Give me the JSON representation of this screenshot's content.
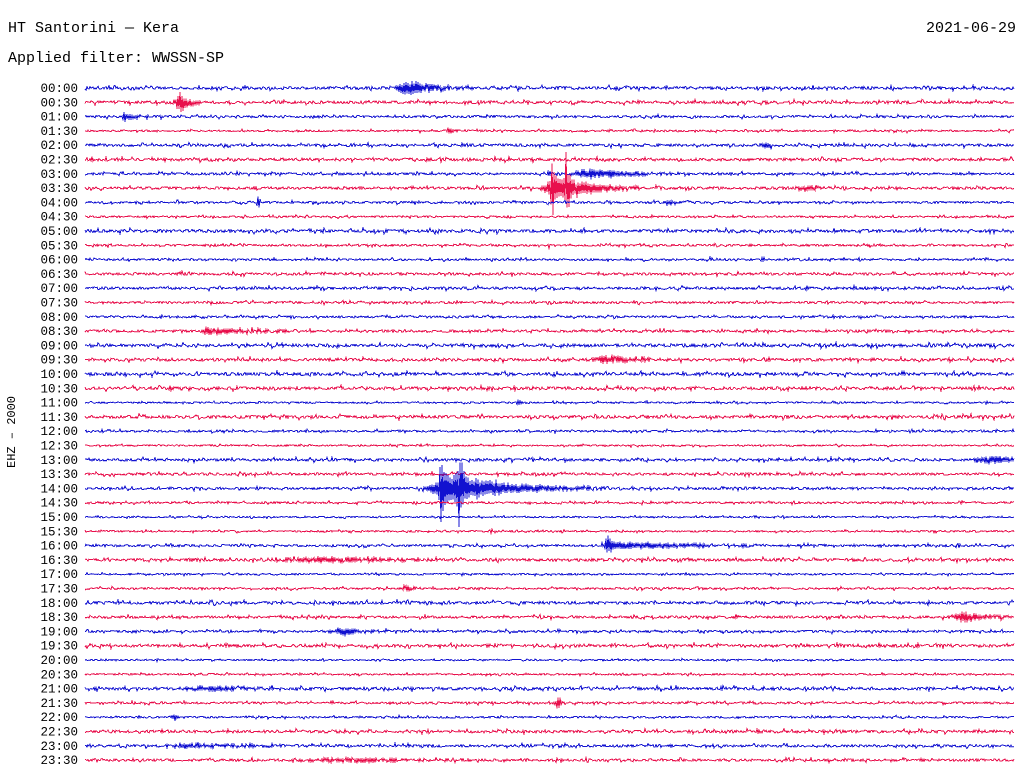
{
  "header": {
    "title": "HT Santorini — Kera",
    "date": "2021-06-29",
    "filter": "Applied filter: WWSSN-SP"
  },
  "y_axis": {
    "channel_label": "EHZ – 2000"
  },
  "chart_data": {
    "type": "line",
    "subtype": "helicorder-seismogram",
    "title": "HT Santorini — Kera",
    "date": "2021-06-29",
    "filter": "WWSSN-SP",
    "ylabel": "EHZ – 2000",
    "xlabel": "",
    "grid": false,
    "minutes_per_row": 30,
    "trace_colors": {
      "hour": "#1212d0",
      "half_hour": "#e8104c"
    },
    "rows": [
      {
        "time": "00:00",
        "color": "hour",
        "noise": 1.4,
        "events": [
          {
            "minute": 10.4,
            "amp": 8,
            "rise": 0.25,
            "decay": 0.9
          }
        ]
      },
      {
        "time": "00:30",
        "color": "half_hour",
        "noise": 1.4,
        "events": [
          {
            "minute": 3.1,
            "amp": 13,
            "rise": 0.12,
            "decay": 0.22
          }
        ]
      },
      {
        "time": "01:00",
        "color": "hour",
        "noise": 1.1,
        "events": [
          {
            "minute": 1.3,
            "amp": 4.5,
            "rise": 0.12,
            "decay": 0.3
          }
        ]
      },
      {
        "time": "01:30",
        "color": "half_hour",
        "noise": 0.9,
        "events": [
          {
            "minute": 11.8,
            "amp": 3,
            "rise": 0.08,
            "decay": 0.15
          }
        ]
      },
      {
        "time": "02:00",
        "color": "hour",
        "noise": 1.3,
        "events": [
          {
            "minute": 22.0,
            "amp": 3,
            "rise": 0.15,
            "decay": 0.3
          }
        ]
      },
      {
        "time": "02:30",
        "color": "half_hour",
        "noise": 1.4,
        "events": []
      },
      {
        "time": "03:00",
        "color": "hour",
        "noise": 1.1,
        "events": [
          {
            "minute": 15.0,
            "amp": 4,
            "rise": 0.05,
            "decay": 0.1
          },
          {
            "minute": 16.3,
            "amp": 5,
            "rise": 0.4,
            "decay": 1.3
          }
        ]
      },
      {
        "time": "03:30",
        "color": "half_hour",
        "noise": 1.3,
        "events": [
          {
            "minute": 15.1,
            "amp": 30,
            "rise": 0.04,
            "decay": 0.07
          },
          {
            "minute": 15.55,
            "amp": 27,
            "rise": 0.04,
            "decay": 0.07
          },
          {
            "minute": 15.4,
            "amp": 12,
            "rise": 0.35,
            "decay": 1.1
          },
          {
            "minute": 23.3,
            "amp": 3,
            "rise": 0.2,
            "decay": 0.4
          }
        ]
      },
      {
        "time": "04:00",
        "color": "hour",
        "noise": 1.1,
        "events": [
          {
            "minute": 5.6,
            "amp": 9,
            "rise": 0.03,
            "decay": 0.05
          },
          {
            "minute": 18.9,
            "amp": 2.5,
            "rise": 0.15,
            "decay": 0.3
          }
        ]
      },
      {
        "time": "04:30",
        "color": "half_hour",
        "noise": 0.9,
        "events": []
      },
      {
        "time": "05:00",
        "color": "hour",
        "noise": 1.5,
        "events": []
      },
      {
        "time": "05:30",
        "color": "half_hour",
        "noise": 1.0,
        "events": [
          {
            "minute": 15.0,
            "amp": 2.5,
            "rise": 0.05,
            "decay": 0.1
          }
        ]
      },
      {
        "time": "06:00",
        "color": "hour",
        "noise": 1.0,
        "events": [
          {
            "minute": 17.5,
            "amp": 2.5,
            "rise": 0.04,
            "decay": 0.08
          },
          {
            "minute": 20.2,
            "amp": 2.2,
            "rise": 0.04,
            "decay": 0.08
          },
          {
            "minute": 21.9,
            "amp": 2.2,
            "rise": 0.04,
            "decay": 0.08
          },
          {
            "minute": 29.1,
            "amp": 2.2,
            "rise": 0.04,
            "decay": 0.08
          }
        ]
      },
      {
        "time": "06:30",
        "color": "half_hour",
        "noise": 1.2,
        "events": [
          {
            "minute": 3.0,
            "amp": 2.5,
            "rise": 0.04,
            "decay": 0.08
          }
        ]
      },
      {
        "time": "07:00",
        "color": "hour",
        "noise": 1.3,
        "events": []
      },
      {
        "time": "07:30",
        "color": "half_hour",
        "noise": 1.1,
        "events": [
          {
            "minute": 9.5,
            "amp": 2,
            "rise": 0.04,
            "decay": 0.08
          }
        ]
      },
      {
        "time": "08:00",
        "color": "hour",
        "noise": 1.0,
        "events": []
      },
      {
        "time": "08:30",
        "color": "half_hour",
        "noise": 1.2,
        "events": [
          {
            "minute": 3.9,
            "amp": 4.5,
            "rise": 0.06,
            "decay": 1.6
          }
        ]
      },
      {
        "time": "09:00",
        "color": "hour",
        "noise": 1.5,
        "events": []
      },
      {
        "time": "09:30",
        "color": "half_hour",
        "noise": 1.4,
        "events": [
          {
            "minute": 17.0,
            "amp": 5,
            "rise": 0.35,
            "decay": 0.7
          }
        ]
      },
      {
        "time": "10:00",
        "color": "hour",
        "noise": 1.5,
        "events": []
      },
      {
        "time": "10:30",
        "color": "half_hour",
        "noise": 1.5,
        "events": []
      },
      {
        "time": "11:00",
        "color": "hour",
        "noise": 0.8,
        "events": [
          {
            "minute": 14.0,
            "amp": 2,
            "rise": 0.04,
            "decay": 0.08
          }
        ]
      },
      {
        "time": "11:30",
        "color": "half_hour",
        "noise": 1.5,
        "events": []
      },
      {
        "time": "12:00",
        "color": "hour",
        "noise": 1.0,
        "events": []
      },
      {
        "time": "12:30",
        "color": "half_hour",
        "noise": 0.8,
        "events": []
      },
      {
        "time": "13:00",
        "color": "hour",
        "noise": 1.3,
        "events": [
          {
            "minute": 29.4,
            "amp": 4,
            "rise": 0.4,
            "decay": 0.6
          }
        ]
      },
      {
        "time": "13:30",
        "color": "half_hour",
        "noise": 1.2,
        "events": []
      },
      {
        "time": "14:00",
        "color": "hour",
        "noise": 1.2,
        "events": [
          {
            "minute": 11.5,
            "amp": 26,
            "rise": 0.05,
            "decay": 0.09
          },
          {
            "minute": 12.1,
            "amp": 30,
            "rise": 0.05,
            "decay": 0.09
          },
          {
            "minute": 12.0,
            "amp": 16,
            "rise": 0.45,
            "decay": 1.7
          }
        ]
      },
      {
        "time": "14:30",
        "color": "half_hour",
        "noise": 1.0,
        "events": []
      },
      {
        "time": "15:00",
        "color": "hour",
        "noise": 0.8,
        "events": []
      },
      {
        "time": "15:30",
        "color": "half_hour",
        "noise": 0.8,
        "events": [
          {
            "minute": 13.1,
            "amp": 2,
            "rise": 0.04,
            "decay": 0.08
          }
        ]
      },
      {
        "time": "16:00",
        "color": "hour",
        "noise": 1.1,
        "events": [
          {
            "minute": 16.9,
            "amp": 9,
            "rise": 0.07,
            "decay": 0.18
          },
          {
            "minute": 17.6,
            "amp": 3.5,
            "rise": 0.5,
            "decay": 2.6
          }
        ]
      },
      {
        "time": "16:30",
        "color": "half_hour",
        "noise": 1.4,
        "events": [
          {
            "minute": 7.9,
            "amp": 3,
            "rise": 1.1,
            "decay": 2.1
          }
        ]
      },
      {
        "time": "17:00",
        "color": "hour",
        "noise": 0.8,
        "events": []
      },
      {
        "time": "17:30",
        "color": "half_hour",
        "noise": 1.0,
        "events": [
          {
            "minute": 10.4,
            "amp": 3,
            "rise": 0.12,
            "decay": 0.22
          }
        ]
      },
      {
        "time": "18:00",
        "color": "hour",
        "noise": 1.4,
        "events": []
      },
      {
        "time": "18:30",
        "color": "half_hour",
        "noise": 1.2,
        "events": [
          {
            "minute": 21.0,
            "amp": 2.5,
            "rise": 0.04,
            "decay": 0.08
          },
          {
            "minute": 28.5,
            "amp": 6,
            "rise": 0.35,
            "decay": 0.6
          }
        ]
      },
      {
        "time": "19:00",
        "color": "hour",
        "noise": 1.1,
        "events": [
          {
            "minute": 8.4,
            "amp": 4,
            "rise": 0.3,
            "decay": 0.6
          }
        ]
      },
      {
        "time": "19:30",
        "color": "half_hour",
        "noise": 1.4,
        "events": []
      },
      {
        "time": "20:00",
        "color": "hour",
        "noise": 0.8,
        "events": []
      },
      {
        "time": "20:30",
        "color": "half_hour",
        "noise": 0.8,
        "events": []
      },
      {
        "time": "21:00",
        "color": "hour",
        "noise": 1.4,
        "events": [
          {
            "minute": 4.5,
            "amp": 2.5,
            "rise": 0.9,
            "decay": 1.3
          }
        ]
      },
      {
        "time": "21:30",
        "color": "half_hour",
        "noise": 1.0,
        "events": [
          {
            "minute": 15.3,
            "amp": 6,
            "rise": 0.08,
            "decay": 0.14
          }
        ]
      },
      {
        "time": "22:00",
        "color": "hour",
        "noise": 0.9,
        "events": [
          {
            "minute": 2.9,
            "amp": 4,
            "rise": 0.06,
            "decay": 0.1
          }
        ]
      },
      {
        "time": "22:30",
        "color": "half_hour",
        "noise": 1.4,
        "events": []
      },
      {
        "time": "23:00",
        "color": "hour",
        "noise": 1.3,
        "events": [
          {
            "minute": 3.5,
            "amp": 2,
            "rise": 0.6,
            "decay": 1.6
          }
        ]
      },
      {
        "time": "23:30",
        "color": "half_hour",
        "noise": 1.2,
        "events": [
          {
            "minute": 9.0,
            "amp": 2,
            "rise": 1.4,
            "decay": 1.6
          }
        ]
      }
    ]
  }
}
